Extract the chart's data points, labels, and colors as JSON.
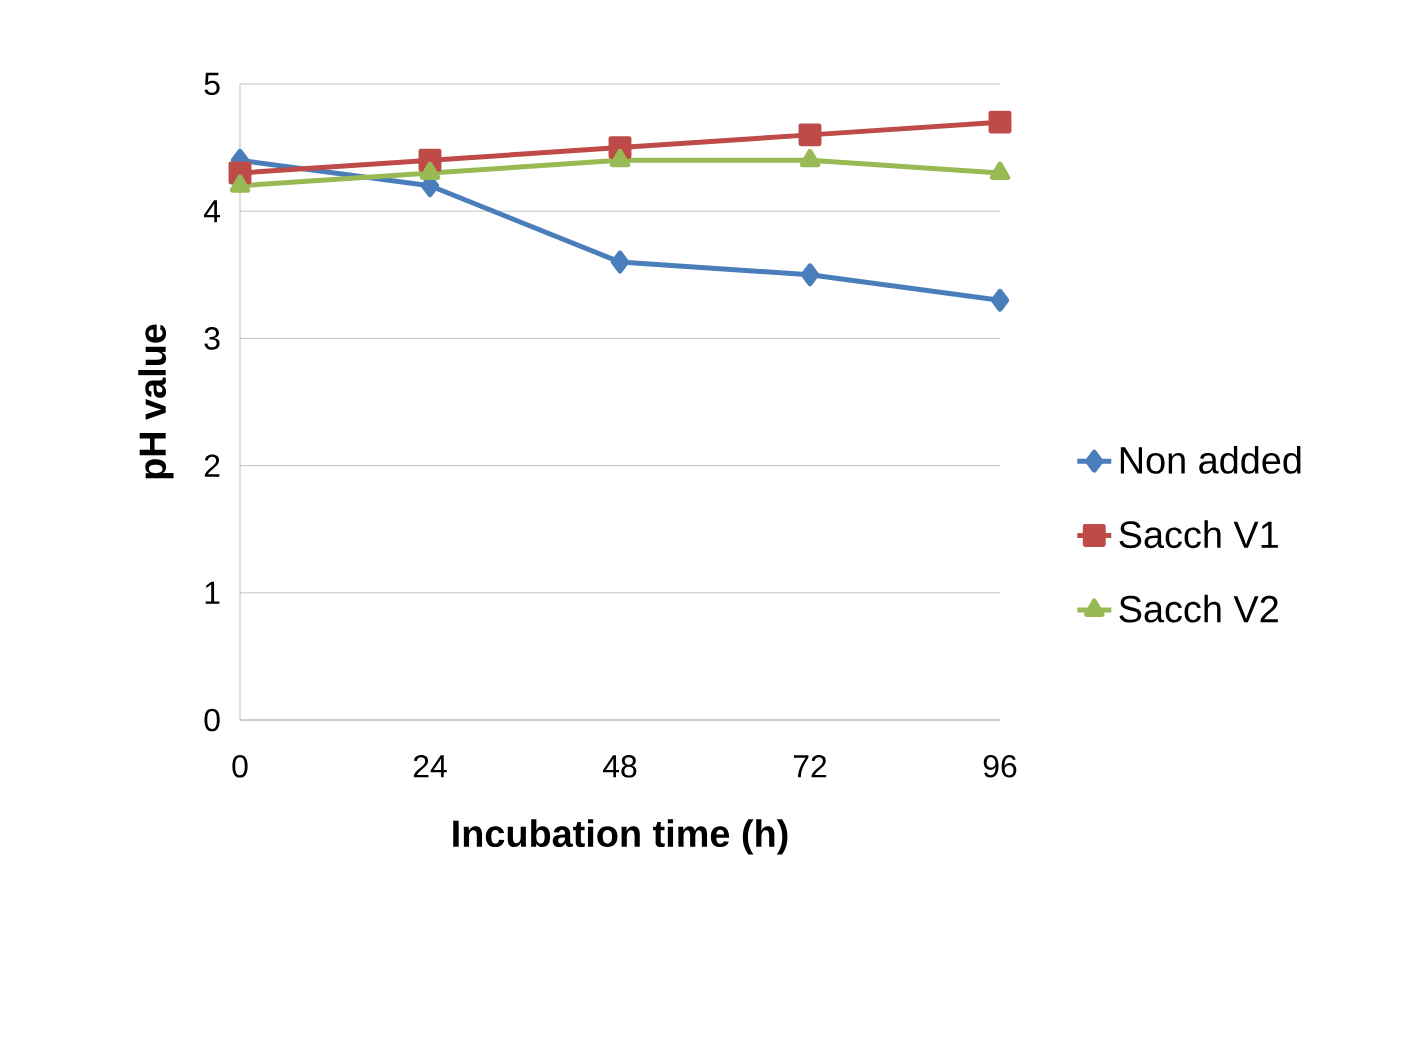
{
  "chart_data": {
    "type": "line",
    "xlabel": "Incubation time (h)",
    "ylabel": "pH value",
    "x": [
      0,
      24,
      48,
      72,
      96
    ],
    "series": [
      {
        "name": "Non added",
        "color": "#4a7ebb",
        "marker": "diamond",
        "values": [
          4.4,
          4.2,
          3.6,
          3.5,
          3.3
        ]
      },
      {
        "name": "Sacch V1",
        "color": "#be4b48",
        "marker": "square",
        "values": [
          4.3,
          4.4,
          4.5,
          4.6,
          4.7
        ]
      },
      {
        "name": "Sacch V2",
        "color": "#98b954",
        "marker": "triangle",
        "values": [
          4.2,
          4.3,
          4.4,
          4.4,
          4.3
        ]
      }
    ],
    "xlim": [
      0,
      96
    ],
    "xticks": [
      0,
      24,
      48,
      72,
      96
    ],
    "ylim": [
      0,
      5
    ],
    "yticks": [
      0,
      1,
      2,
      3,
      4,
      5
    ],
    "grid": "y",
    "legend": "right",
    "line_style": "solid"
  }
}
